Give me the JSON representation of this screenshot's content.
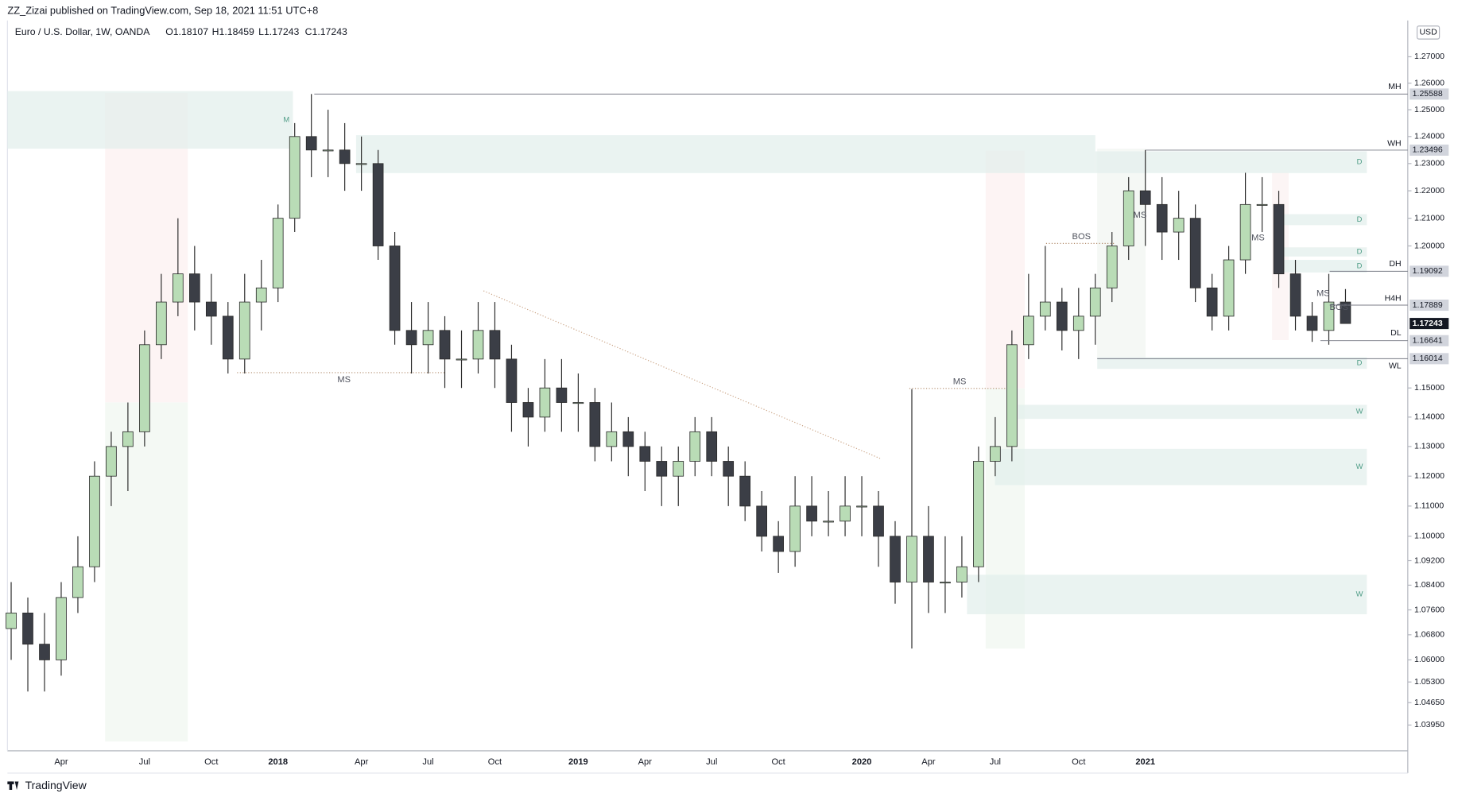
{
  "header": {
    "publisher": "ZZ_Zizai published on TradingView.com, Sep 18, 2021 11:51 UTC+8"
  },
  "footer": {
    "brand": "TradingView"
  },
  "chart_data": {
    "type": "candlestick",
    "title": "Euro / U.S. Dollar, 1W, OANDA",
    "legend_values": [
      "O1.18107",
      "H1.18459",
      "L1.17243",
      "C1.17243"
    ],
    "currency": "USD",
    "categories": [
      null,
      null,
      null,
      "Apr",
      null,
      null,
      null,
      null,
      "Jul",
      null,
      null,
      null,
      "Oct",
      null,
      null,
      null,
      "2018",
      null,
      null,
      null,
      null,
      "Apr",
      null,
      null,
      null,
      "Jul",
      null,
      null,
      null,
      "Oct",
      null,
      null,
      null,
      null,
      "2019",
      null,
      null,
      null,
      "Apr",
      null,
      null,
      null,
      "Jul",
      null,
      null,
      null,
      "Oct",
      null,
      null,
      null,
      null,
      "2020",
      null,
      null,
      null,
      "Apr",
      null,
      null,
      null,
      "Jul",
      null,
      null,
      null,
      null,
      "Oct",
      null,
      null,
      null,
      "2021",
      null,
      null,
      null,
      null,
      null,
      null,
      null,
      null,
      null,
      null,
      null,
      null
    ],
    "open": [
      1.07,
      1.075,
      1.065,
      1.06,
      1.08,
      1.09,
      1.12,
      1.13,
      1.135,
      1.165,
      1.18,
      1.19,
      1.18,
      1.175,
      1.16,
      1.18,
      1.185,
      1.21,
      1.24,
      1.235,
      1.235,
      1.23,
      1.23,
      1.2,
      1.17,
      1.165,
      1.17,
      1.16,
      1.16,
      1.17,
      1.16,
      1.145,
      1.14,
      1.15,
      1.145,
      1.145,
      1.13,
      1.135,
      1.13,
      1.125,
      1.12,
      1.125,
      1.135,
      1.125,
      1.12,
      1.11,
      1.1,
      1.095,
      1.11,
      1.105,
      1.105,
      1.11,
      1.11,
      1.1,
      1.085,
      1.1,
      1.085,
      1.085,
      1.09,
      1.125,
      1.13,
      1.165,
      1.175,
      1.18,
      1.17,
      1.175,
      1.185,
      1.2,
      1.22,
      1.215,
      1.205,
      1.21,
      1.185,
      1.175,
      1.195,
      1.215,
      1.215,
      1.19,
      1.175,
      1.17,
      1.18
    ],
    "high": [
      1.085,
      1.08,
      1.075,
      1.085,
      1.1,
      1.125,
      1.135,
      1.145,
      1.17,
      1.19,
      1.21,
      1.2,
      1.19,
      1.18,
      1.19,
      1.195,
      1.215,
      1.245,
      1.2559,
      1.25,
      1.245,
      1.24,
      1.235,
      1.205,
      1.18,
      1.18,
      1.175,
      1.17,
      1.18,
      1.18,
      1.165,
      1.15,
      1.16,
      1.16,
      1.155,
      1.15,
      1.145,
      1.14,
      1.135,
      1.13,
      1.13,
      1.14,
      1.14,
      1.13,
      1.125,
      1.115,
      1.105,
      1.12,
      1.12,
      1.115,
      1.12,
      1.12,
      1.115,
      1.105,
      1.1496,
      1.11,
      1.1,
      1.1,
      1.13,
      1.14,
      1.17,
      1.19,
      1.2,
      1.185,
      1.185,
      1.19,
      1.205,
      1.225,
      1.235,
      1.225,
      1.22,
      1.215,
      1.19,
      1.2,
      1.2266,
      1.225,
      1.22,
      1.195,
      1.18,
      1.19,
      1.18459
    ],
    "low": [
      1.06,
      1.05,
      1.05,
      1.055,
      1.075,
      1.085,
      1.11,
      1.115,
      1.13,
      1.16,
      1.175,
      1.17,
      1.165,
      1.155,
      1.155,
      1.17,
      1.18,
      1.205,
      1.225,
      1.225,
      1.22,
      1.22,
      1.195,
      1.165,
      1.155,
      1.155,
      1.15,
      1.15,
      1.155,
      1.15,
      1.135,
      1.13,
      1.135,
      1.135,
      1.135,
      1.125,
      1.125,
      1.12,
      1.115,
      1.11,
      1.11,
      1.12,
      1.12,
      1.11,
      1.105,
      1.095,
      1.088,
      1.09,
      1.1,
      1.1,
      1.1,
      1.1,
      1.09,
      1.078,
      1.0636,
      1.075,
      1.075,
      1.08,
      1.085,
      1.12,
      1.125,
      1.16,
      1.17,
      1.163,
      1.16,
      1.165,
      1.18,
      1.195,
      1.2,
      1.195,
      1.195,
      1.18,
      1.17,
      1.17,
      1.19,
      1.205,
      1.185,
      1.17,
      1.166,
      1.165,
      1.17243
    ],
    "close": [
      1.075,
      1.065,
      1.06,
      1.08,
      1.09,
      1.12,
      1.13,
      1.135,
      1.165,
      1.18,
      1.19,
      1.18,
      1.175,
      1.16,
      1.18,
      1.185,
      1.21,
      1.24,
      1.235,
      1.235,
      1.23,
      1.23,
      1.2,
      1.17,
      1.165,
      1.17,
      1.16,
      1.16,
      1.17,
      1.16,
      1.145,
      1.14,
      1.15,
      1.145,
      1.145,
      1.13,
      1.135,
      1.13,
      1.125,
      1.12,
      1.125,
      1.135,
      1.125,
      1.12,
      1.11,
      1.1,
      1.095,
      1.11,
      1.105,
      1.105,
      1.11,
      1.11,
      1.1,
      1.085,
      1.1,
      1.085,
      1.085,
      1.09,
      1.125,
      1.13,
      1.165,
      1.175,
      1.18,
      1.17,
      1.175,
      1.185,
      1.2,
      1.22,
      1.215,
      1.205,
      1.21,
      1.185,
      1.175,
      1.195,
      1.215,
      1.215,
      1.19,
      1.175,
      1.17,
      1.18,
      1.17243
    ],
    "up_color": "#b9dcb6",
    "down_color": "#3b3e46",
    "wick_color": "#2a2a2a",
    "log_scale": true,
    "grid": false,
    "ylim": [
      1.0315,
      1.2839
    ],
    "yticks": [
      {
        "value": 1.27,
        "label": "1.27000"
      },
      {
        "value": 1.26,
        "label": "1.26000"
      },
      {
        "value": 1.25,
        "label": "1.25000"
      },
      {
        "value": 1.24,
        "label": "1.24000"
      },
      {
        "value": 1.23,
        "label": "1.23000"
      },
      {
        "value": 1.22,
        "label": "1.22000"
      },
      {
        "value": 1.21,
        "label": "1.21000"
      },
      {
        "value": 1.2,
        "label": "1.20000"
      },
      {
        "value": 1.15,
        "label": "1.15000"
      },
      {
        "value": 1.14,
        "label": "1.14000"
      },
      {
        "value": 1.13,
        "label": "1.13000"
      },
      {
        "value": 1.12,
        "label": "1.12000"
      },
      {
        "value": 1.11,
        "label": "1.11000"
      },
      {
        "value": 1.1,
        "label": "1.10000"
      },
      {
        "value": 1.092,
        "label": "1.09200"
      },
      {
        "value": 1.084,
        "label": "1.08400"
      },
      {
        "value": 1.076,
        "label": "1.07600"
      },
      {
        "value": 1.068,
        "label": "1.06800"
      },
      {
        "value": 1.06,
        "label": "1.06000"
      },
      {
        "value": 1.053,
        "label": "1.05300"
      },
      {
        "value": 1.0465,
        "label": "1.04650"
      },
      {
        "value": 1.0395,
        "label": "1.03950"
      }
    ],
    "levels": [
      {
        "name": "MH",
        "value": 1.25588
      },
      {
        "name": "WH",
        "value": 1.23496
      },
      {
        "name": "DH",
        "value": 1.19092
      },
      {
        "name": "H4H",
        "value": 1.17889
      },
      {
        "name": "DL",
        "value": 1.16641
      },
      {
        "name": "WL",
        "value": 1.16014
      }
    ],
    "zones": [
      {
        "label": "M",
        "top": 1.257,
        "bottom": 1.2355
      },
      {
        "top": 1.2405,
        "bottom": 1.2265
      },
      {
        "label": "D",
        "top": 1.2345,
        "bottom": 1.2265
      },
      {
        "label": "D",
        "top": 1.2115,
        "bottom": 1.2075
      },
      {
        "label": "D",
        "top": 1.1995,
        "bottom": 1.1962
      },
      {
        "label": "D",
        "top": 1.195,
        "bottom": 1.1905
      },
      {
        "label": "D",
        "top": 1.1606,
        "bottom": 1.1566
      },
      {
        "label": "W",
        "top": 1.1442,
        "bottom": 1.1394
      },
      {
        "label": "W",
        "top": 1.1292,
        "bottom": 1.117
      },
      {
        "label": "W",
        "top": 1.0874,
        "bottom": 1.0746
      }
    ],
    "annotations": [
      "MS",
      "MS",
      "BOS",
      "MS",
      "MS",
      "MS",
      "BOS"
    ]
  }
}
